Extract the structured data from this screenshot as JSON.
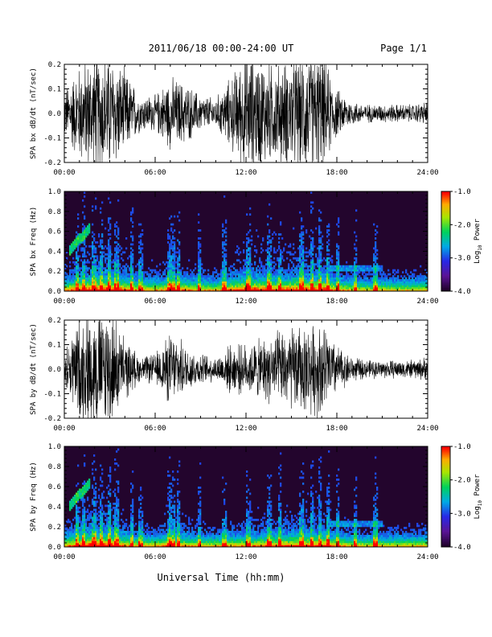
{
  "header": {
    "title": "2011/06/18  00:00-24:00 UT",
    "page": "Page 1/1"
  },
  "footer": {
    "xlabel": "Universal Time (hh:mm)"
  },
  "time_ticks": [
    "00:00",
    "06:00",
    "12:00",
    "18:00",
    "24:00"
  ],
  "chart_data": [
    {
      "type": "line",
      "ylabel": "SPA bx dB/dt (nT/sec)",
      "xlim": [
        0,
        24
      ],
      "ylim": [
        -0.2,
        0.2
      ],
      "yticks": [
        "-0.2",
        "-0.1",
        "0.0",
        "0.1",
        "0.2"
      ],
      "series": [
        {
          "x_hours": [
            0,
            1,
            2,
            3,
            4,
            5,
            6,
            7,
            8,
            9,
            10,
            11,
            12,
            13,
            14,
            15,
            16,
            17,
            18,
            19,
            20,
            21,
            22,
            23,
            24
          ],
          "envelope_amplitude": [
            0.08,
            0.16,
            0.2,
            0.2,
            0.14,
            0.06,
            0.06,
            0.12,
            0.1,
            0.06,
            0.05,
            0.12,
            0.2,
            0.18,
            0.16,
            0.18,
            0.2,
            0.2,
            0.08,
            0.04,
            0.03,
            0.03,
            0.03,
            0.03,
            0.04
          ]
        }
      ]
    },
    {
      "type": "heatmap",
      "ylabel": "SPA bx Freq (Hz)",
      "xlim": [
        0,
        24
      ],
      "ylim": [
        0.0,
        1.0
      ],
      "yticks": [
        "0.0",
        "0.2",
        "0.4",
        "0.6",
        "0.8",
        "1.0"
      ],
      "colorbar": {
        "label": "Log",
        "label_sub": "10",
        "label_tail": " Power",
        "range": [
          -4.0,
          -1.0
        ],
        "ticks": [
          "-1.0",
          "-2.0",
          "-3.0",
          "-4.0"
        ]
      }
    },
    {
      "type": "line",
      "ylabel": "SPA by dB/dt (nT/sec)",
      "xlim": [
        0,
        24
      ],
      "ylim": [
        -0.2,
        0.2
      ],
      "yticks": [
        "-0.2",
        "-0.1",
        "0.0",
        "0.1",
        "0.2"
      ],
      "series": [
        {
          "x_hours": [
            0,
            1,
            2,
            3,
            4,
            5,
            6,
            7,
            8,
            9,
            10,
            11,
            12,
            13,
            14,
            15,
            16,
            17,
            18,
            19,
            20,
            21,
            22,
            23,
            24
          ],
          "envelope_amplitude": [
            0.06,
            0.18,
            0.2,
            0.2,
            0.1,
            0.04,
            0.05,
            0.12,
            0.08,
            0.05,
            0.04,
            0.08,
            0.08,
            0.1,
            0.12,
            0.14,
            0.14,
            0.16,
            0.08,
            0.04,
            0.03,
            0.03,
            0.03,
            0.03,
            0.04
          ]
        }
      ]
    },
    {
      "type": "heatmap",
      "ylabel": "SPA by Freq (Hz)",
      "xlim": [
        0,
        24
      ],
      "ylim": [
        0.0,
        1.0
      ],
      "yticks": [
        "0.0",
        "0.2",
        "0.4",
        "0.6",
        "0.8",
        "1.0"
      ],
      "colorbar": {
        "label": "Log",
        "label_sub": "10",
        "label_tail": " Power",
        "range": [
          -4.0,
          -1.0
        ],
        "ticks": [
          "-1.0",
          "-2.0",
          "-3.0",
          "-4.0"
        ]
      }
    }
  ]
}
